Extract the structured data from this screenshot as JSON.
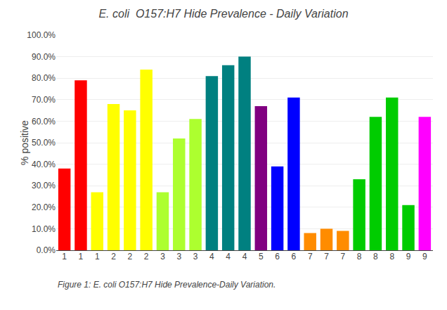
{
  "chart_data": {
    "type": "bar",
    "title": "E. coli  O157:H7 Hide Prevalence - Daily Variation",
    "ylabel": "% positive",
    "annotations": [
      "Figure 1: E. coli O157:H7 Hide Prevalence-Daily Variation."
    ],
    "categories": [
      "1",
      "1",
      "1",
      "2",
      "2",
      "2",
      "3",
      "3",
      "3",
      "4",
      "4",
      "4",
      "5",
      "6",
      "6",
      "7",
      "7",
      "7",
      "8",
      "8",
      "8",
      "9",
      "9"
    ],
    "values": [
      38.0,
      79.0,
      27.0,
      68.0,
      65.0,
      84.0,
      27.0,
      52.0,
      61.0,
      81.0,
      86.0,
      90.0,
      67.0,
      39.0,
      71.0,
      8.0,
      10.0,
      9.0,
      33.0,
      62.0,
      71.0,
      21.0,
      62.0
    ],
    "colors": [
      "#FF0000",
      "#FF0000",
      "#FFFF00",
      "#FFFF00",
      "#FFFF00",
      "#FFFF00",
      "#ADFF2F",
      "#ADFF2F",
      "#ADFF2F",
      "#008080",
      "#008080",
      "#008080",
      "#800080",
      "#0000FF",
      "#0000FF",
      "#FF8C00",
      "#FF8C00",
      "#FF8C00",
      "#00CC00",
      "#00CC00",
      "#00CC00",
      "#00CC00",
      "#FF00FF"
    ],
    "ylim": [
      0,
      100
    ],
    "yticks": [
      {
        "value": 0,
        "label": "0.0%"
      },
      {
        "value": 10,
        "label": "10.0%"
      },
      {
        "value": 20,
        "label": "20.0%"
      },
      {
        "value": 30,
        "label": "30.0%"
      },
      {
        "value": 40,
        "label": "40.0%"
      },
      {
        "value": 50,
        "label": "50.0%"
      },
      {
        "value": 60,
        "label": "60.0%"
      },
      {
        "value": 70,
        "label": "70.0%"
      },
      {
        "value": 80,
        "label": "80.0%"
      },
      {
        "value": 90,
        "label": "90.0%"
      },
      {
        "value": 100,
        "label": "100.0%"
      }
    ],
    "grid": true
  }
}
